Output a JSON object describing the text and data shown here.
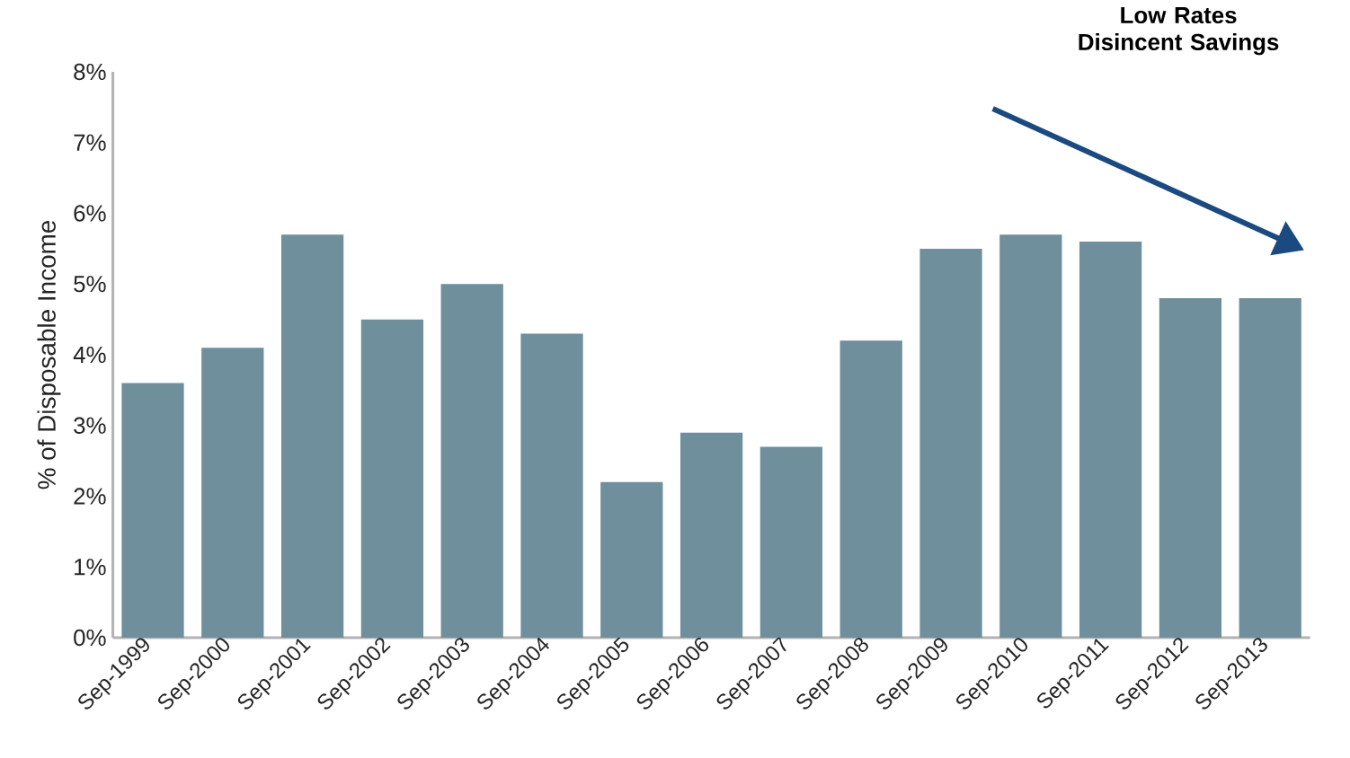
{
  "chart_data": {
    "type": "bar",
    "ylabel": "% of Disposable Income",
    "categories": [
      "Sep-1999",
      "Sep-2000",
      "Sep-2001",
      "Sep-2002",
      "Sep-2003",
      "Sep-2004",
      "Sep-2005",
      "Sep-2006",
      "Sep-2007",
      "Sep-2008",
      "Sep-2009",
      "Sep-2010",
      "Sep-2011",
      "Sep-2012",
      "Sep-2013"
    ],
    "values": [
      3.6,
      4.1,
      5.7,
      4.5,
      5.0,
      4.3,
      2.2,
      2.9,
      2.7,
      4.2,
      5.5,
      5.7,
      5.6,
      4.8,
      4.8
    ],
    "color": "#6f8f9c",
    "ylim": [
      0,
      8
    ],
    "yticks": [
      {
        "value": 0,
        "label": "0%"
      },
      {
        "value": 1,
        "label": "1%"
      },
      {
        "value": 2,
        "label": "2%"
      },
      {
        "value": 3,
        "label": "3%"
      },
      {
        "value": 4,
        "label": "4%"
      },
      {
        "value": 5,
        "label": "5%"
      },
      {
        "value": 6,
        "label": "6%"
      },
      {
        "value": 7,
        "label": "7%"
      },
      {
        "value": 8,
        "label": "8%"
      }
    ],
    "grid": false,
    "annotations": [
      "Low Rates Disincent Savings"
    ]
  }
}
